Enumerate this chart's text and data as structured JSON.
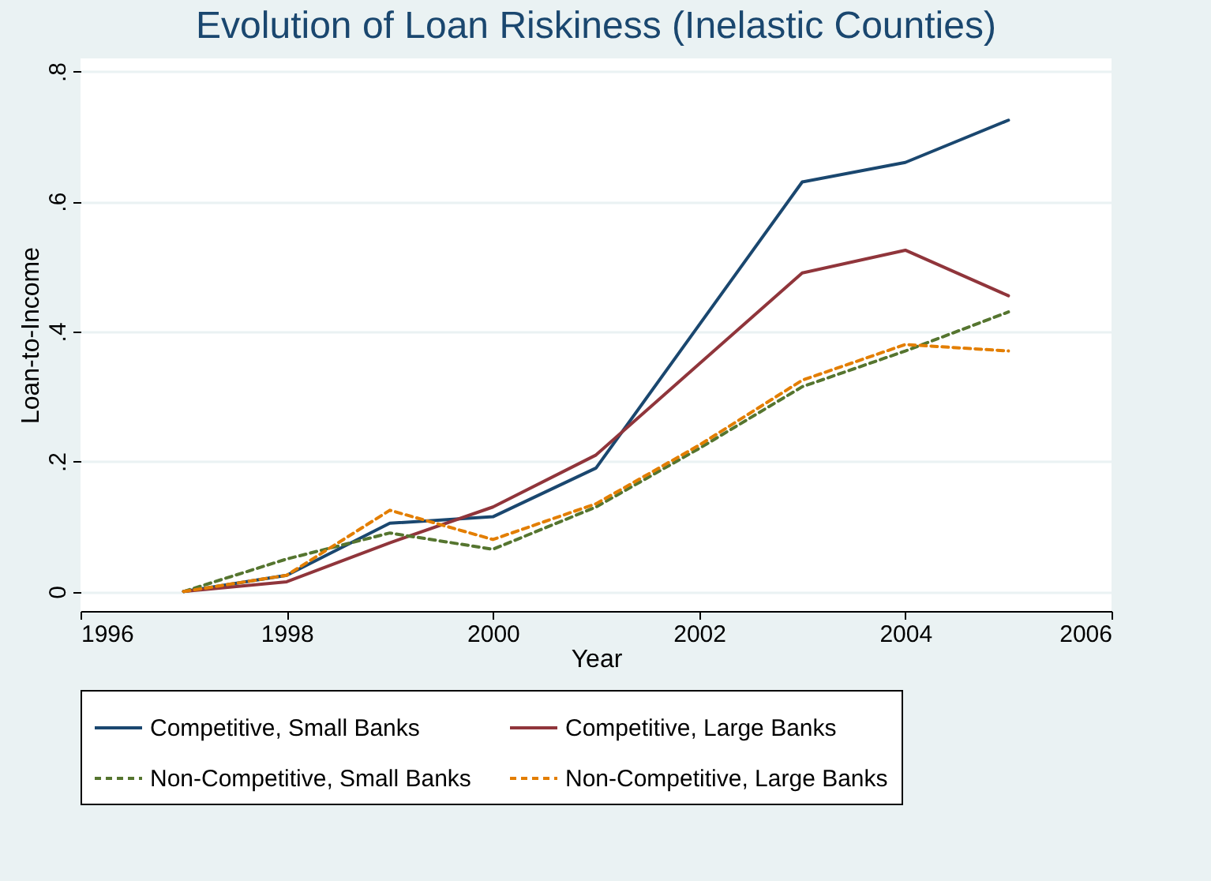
{
  "chart_data": {
    "type": "line",
    "title": "Evolution of Loan Riskiness (Inelastic Counties)",
    "xlabel": "Year",
    "ylabel": "Loan-to-Income",
    "x": [
      1997,
      1998,
      1999,
      2000,
      2001,
      2002,
      2003,
      2004,
      2005
    ],
    "series": [
      {
        "name": "Competitive, Small Banks",
        "color": "#1a476f",
        "line_style": "solid",
        "values": [
          0,
          0.025,
          0.105,
          0.115,
          0.19,
          0.41,
          0.63,
          0.66,
          0.725
        ]
      },
      {
        "name": "Competitive, Large Banks",
        "color": "#90353b",
        "line_style": "solid",
        "values": [
          0,
          0.015,
          0.075,
          0.13,
          0.21,
          0.35,
          0.49,
          0.525,
          0.455
        ]
      },
      {
        "name": "Non-Competitive, Small Banks",
        "color": "#55752f",
        "line_style": "dashed",
        "values": [
          0,
          0.05,
          0.09,
          0.065,
          0.13,
          0.22,
          0.315,
          0.37,
          0.43
        ]
      },
      {
        "name": "Non-Competitive, Large Banks",
        "color": "#e37e00",
        "line_style": "dashed",
        "values": [
          0,
          0.025,
          0.125,
          0.08,
          0.135,
          0.225,
          0.325,
          0.38,
          0.37
        ]
      }
    ],
    "xlim": [
      1996,
      2006
    ],
    "xticks": [
      1996,
      1998,
      2000,
      2002,
      2004,
      2006
    ],
    "ylim": [
      -0.03,
      0.82
    ],
    "yticks": [
      {
        "value": 0,
        "label": "0"
      },
      {
        "value": 0.2,
        "label": ".2"
      },
      {
        "value": 0.4,
        "label": ".4"
      },
      {
        "value": 0.6,
        "label": ".6"
      },
      {
        "value": 0.8,
        "label": ".8"
      }
    ],
    "grid": "y",
    "legend": "bottom",
    "marker": "none"
  }
}
